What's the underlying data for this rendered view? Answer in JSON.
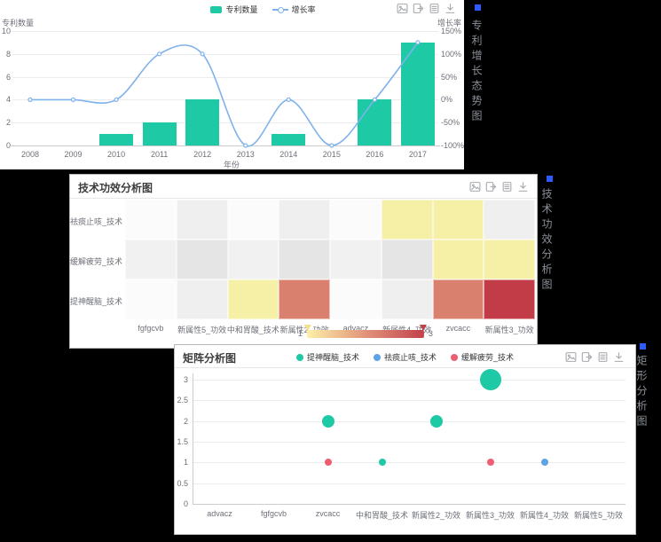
{
  "stage": {
    "bg": "#000000",
    "accent_blue": "#2e5bff"
  },
  "toolbar_icons": [
    "save-image-icon",
    "export-icon",
    "data-view-icon",
    "download-icon"
  ],
  "panel1": {
    "side_label": "专利增长态势图",
    "left_axis_name": "专利数量",
    "right_axis_name": "增长率",
    "x_axis_name": "年份",
    "left_ticks": [
      "10",
      "8",
      "6",
      "4",
      "2",
      "0"
    ],
    "right_ticks": [
      "150%",
      "100%",
      "50%",
      "0%",
      "-50%",
      "-100%"
    ],
    "legend": [
      {
        "label": "专利数量",
        "type": "bar",
        "color": "#1ec9a5"
      },
      {
        "label": "增长率",
        "type": "line",
        "color": "#7fb2eb"
      }
    ]
  },
  "panel2": {
    "title": "技术功效分析图",
    "side_label": "技术功效分析图",
    "visual_map": {
      "min_label": "1",
      "max_label": "3"
    }
  },
  "panel3": {
    "title": "矩阵分析图",
    "side_label": "矩形分析图",
    "y_ticks": [
      "3",
      "2.5",
      "2",
      "1.5",
      "1",
      "0.5",
      "0"
    ],
    "legend": [
      {
        "label": "提神醒脑_技术",
        "color": "#1ec9a5"
      },
      {
        "label": "祛痰止咳_技术",
        "color": "#5fa3e7"
      },
      {
        "label": "缓解疲劳_技术",
        "color": "#ee5d71"
      }
    ]
  },
  "chart_data": [
    {
      "type": "bar",
      "title": "专利增长态势图",
      "categories": [
        "2008",
        "2009",
        "2010",
        "2011",
        "2012",
        "2013",
        "2014",
        "2015",
        "2016",
        "2017"
      ],
      "series": [
        {
          "name": "专利数量",
          "type": "bar",
          "color": "#1ec9a5",
          "axis": "left",
          "values": [
            0,
            0,
            1,
            2,
            4,
            0,
            1,
            0,
            4,
            9
          ]
        },
        {
          "name": "增长率",
          "type": "line",
          "color": "#7fb2eb",
          "axis": "right",
          "unit": "%",
          "values": [
            0,
            0,
            0,
            100,
            100,
            -100,
            0,
            -100,
            0,
            125
          ]
        }
      ],
      "left_ylabel": "专利数量",
      "right_ylabel": "增长率",
      "xlabel": "年份",
      "left_ylim": [
        0,
        10
      ],
      "right_ylim": [
        -100,
        150
      ],
      "grid": true,
      "legend_position": "top"
    },
    {
      "type": "heatmap",
      "title": "技术功效分析图",
      "x_categories": [
        "fgfgcvb",
        "新属性5_功效",
        "中和胃酸_技术",
        "新属性2_功效",
        "advacz",
        "新属性4_功效",
        "zvcacc",
        "新属性3_功效"
      ],
      "y_categories": [
        "祛痰止咳_技术",
        "缓解疲劳_技术",
        "提神醒脑_技术"
      ],
      "values": [
        [
          0,
          0,
          0,
          0,
          0,
          1,
          1,
          0
        ],
        [
          0,
          0,
          0,
          0,
          0,
          0,
          1,
          1
        ],
        [
          0,
          0,
          1,
          2,
          0,
          0,
          2,
          3
        ]
      ],
      "visual_map": {
        "min": 1,
        "max": 3,
        "gradient": [
          "#fdf0a7",
          "#e2937a",
          "#c0424b"
        ]
      },
      "value_colors": {
        "1": "#f6efa6",
        "2": "#d9806f",
        "3": "#c13c47"
      }
    },
    {
      "type": "scatter",
      "title": "矩阵分析图",
      "x_categories": [
        "advacz",
        "fgfgcvb",
        "zvcacc",
        "中和胃酸_技术",
        "新属性2_功效",
        "新属性3_功效",
        "新属性4_功效",
        "新属性5_功效"
      ],
      "ylim": [
        0,
        3.25
      ],
      "series": [
        {
          "name": "提神醒脑_技术",
          "color": "#1ec9a5",
          "points": [
            {
              "x": "中和胃酸_技术",
              "y": 1
            },
            {
              "x": "zvcacc",
              "y": 2
            },
            {
              "x": "新属性2_功效",
              "y": 2
            },
            {
              "x": "新属性3_功效",
              "y": 3
            }
          ]
        },
        {
          "name": "祛痰止咳_技术",
          "color": "#5fa3e7",
          "points": [
            {
              "x": "新属性4_功效",
              "y": 1
            }
          ]
        },
        {
          "name": "缓解疲劳_技术",
          "color": "#ee5d71",
          "points": [
            {
              "x": "zvcacc",
              "y": 1
            },
            {
              "x": "新属性3_功效",
              "y": 1
            }
          ]
        }
      ],
      "size_by_value": {
        "1": 8,
        "2": 14,
        "3": 24
      }
    }
  ]
}
